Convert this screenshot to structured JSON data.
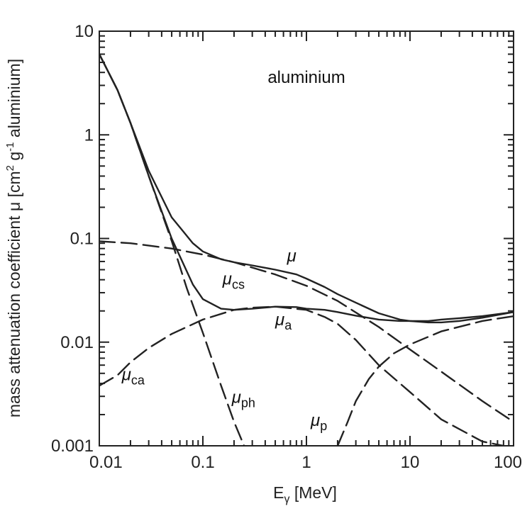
{
  "chart_data": {
    "type": "line",
    "title": "",
    "annotation": "aluminium",
    "xlabel": {
      "main": "E",
      "sub": "γ",
      "unit": " [MeV]"
    },
    "ylabel": {
      "main": "mass attenuation coefficient μ [cm",
      "sup1": "2",
      "mid": " g",
      "sup2": "-1",
      "end": " aluminium]"
    },
    "xscale": "log",
    "yscale": "log",
    "xlim": [
      0.01,
      100
    ],
    "ylim": [
      0.001,
      10
    ],
    "x_ticks": [
      "0.01",
      "0.1",
      "1",
      "10",
      "100"
    ],
    "y_ticks": [
      "0.001",
      "0.01",
      "0.1",
      "1",
      "10"
    ],
    "grid": false,
    "legend": "none",
    "series": [
      {
        "name": "μ",
        "label_main": "μ",
        "label_sub": "",
        "style": "solid",
        "x": [
          0.01,
          0.015,
          0.02,
          0.03,
          0.05,
          0.08,
          0.1,
          0.15,
          0.2,
          0.3,
          0.5,
          0.8,
          1,
          1.5,
          2,
          3,
          5,
          8,
          10,
          15,
          20,
          30,
          50,
          100
        ],
        "y": [
          6.0,
          2.7,
          1.3,
          0.45,
          0.16,
          0.09,
          0.075,
          0.063,
          0.059,
          0.055,
          0.05,
          0.045,
          0.041,
          0.034,
          0.029,
          0.024,
          0.019,
          0.0165,
          0.016,
          0.0155,
          0.0155,
          0.016,
          0.0172,
          0.0195
        ]
      },
      {
        "name": "μcs",
        "label_main": "μ",
        "label_sub": "cs",
        "style": "dashed",
        "x": [
          0.01,
          0.02,
          0.05,
          0.1,
          0.2,
          0.5,
          1,
          2,
          5,
          10,
          20,
          50,
          100
        ],
        "y": [
          0.094,
          0.09,
          0.08,
          0.07,
          0.059,
          0.045,
          0.035,
          0.025,
          0.014,
          0.0085,
          0.0052,
          0.0027,
          0.0017
        ]
      },
      {
        "name": "μa",
        "label_main": "μ",
        "label_sub": "a",
        "style": "solid",
        "x": [
          0.01,
          0.015,
          0.02,
          0.03,
          0.05,
          0.08,
          0.1,
          0.15,
          0.2,
          0.3,
          0.5,
          0.8,
          1,
          1.5,
          2,
          3,
          5,
          8,
          10,
          15,
          20,
          30,
          50,
          100
        ],
        "y": [
          6.0,
          2.7,
          1.3,
          0.4,
          0.1,
          0.036,
          0.026,
          0.021,
          0.0205,
          0.021,
          0.022,
          0.0218,
          0.021,
          0.0205,
          0.0195,
          0.018,
          0.0165,
          0.016,
          0.016,
          0.016,
          0.0165,
          0.017,
          0.0178,
          0.0195
        ]
      },
      {
        "name": "μca",
        "label_main": "μ",
        "label_sub": "ca",
        "style": "dashed",
        "x": [
          0.01,
          0.015,
          0.02,
          0.03,
          0.05,
          0.1,
          0.2,
          0.3,
          0.5,
          1,
          1.5,
          2,
          3,
          5,
          10,
          20,
          50,
          80
        ],
        "y": [
          0.0038,
          0.0048,
          0.0064,
          0.0088,
          0.012,
          0.0165,
          0.0205,
          0.0215,
          0.022,
          0.0205,
          0.0175,
          0.015,
          0.0105,
          0.006,
          0.0033,
          0.0018,
          0.0011,
          0.001
        ]
      },
      {
        "name": "μph",
        "label_main": "μ",
        "label_sub": "ph",
        "style": "dashed",
        "x": [
          0.01,
          0.015,
          0.02,
          0.03,
          0.05,
          0.07,
          0.1,
          0.15,
          0.2,
          0.25
        ],
        "y": [
          6.0,
          2.7,
          1.3,
          0.4,
          0.095,
          0.033,
          0.0123,
          0.0038,
          0.0017,
          0.001
        ]
      },
      {
        "name": "μp",
        "label_main": "μ",
        "label_sub": "p",
        "style": "dashed",
        "x": [
          2.0,
          2.5,
          3,
          4,
          5,
          7,
          10,
          20,
          50,
          100
        ],
        "y": [
          0.001,
          0.0017,
          0.0027,
          0.0044,
          0.0058,
          0.0078,
          0.0095,
          0.0127,
          0.016,
          0.0178
        ]
      }
    ],
    "curve_labels": [
      {
        "series": "μ",
        "x": 0.65,
        "y": 0.06
      },
      {
        "series": "μcs",
        "x": 0.155,
        "y": 0.036
      },
      {
        "series": "μa",
        "x": 0.5,
        "y": 0.0145
      },
      {
        "series": "μca",
        "x": 0.0165,
        "y": 0.0043
      },
      {
        "series": "μph",
        "x": 0.19,
        "y": 0.0026
      },
      {
        "series": "μp",
        "x": 1.1,
        "y": 0.00155
      }
    ]
  }
}
